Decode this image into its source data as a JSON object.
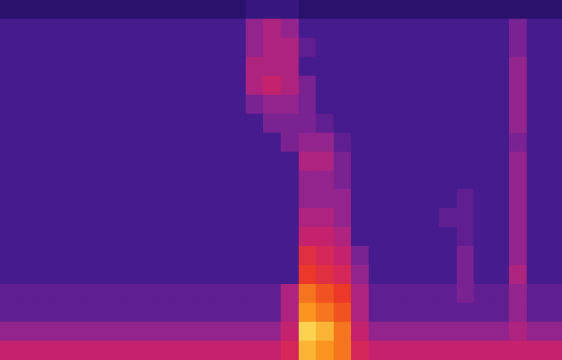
{
  "chart_data": {
    "type": "heatmap",
    "tick_labels": false,
    "color_range": [
      0,
      10
    ],
    "cells": [
      [
        2,
        2,
        2,
        2,
        2,
        2,
        2,
        2,
        2,
        2,
        2,
        2,
        2,
        2,
        2.5,
        2.5,
        2.5,
        2,
        2,
        2,
        2,
        2,
        2,
        2,
        2,
        2,
        2,
        2,
        2,
        2,
        2,
        2
      ],
      [
        3,
        3,
        3,
        3,
        3,
        3,
        3,
        3,
        3,
        3,
        3,
        3,
        3,
        3,
        4.5,
        5,
        4.5,
        3,
        3,
        3,
        3,
        3,
        3,
        3,
        3,
        3,
        3,
        3,
        3,
        4,
        3,
        3
      ],
      [
        3,
        3,
        3,
        3,
        3,
        3,
        3,
        3,
        3,
        3,
        3,
        3,
        3,
        3,
        4.5,
        5,
        5,
        3.5,
        3,
        3,
        3,
        3,
        3,
        3,
        3,
        3,
        3,
        3,
        3,
        4,
        3,
        3
      ],
      [
        3,
        3,
        3,
        3,
        3,
        3,
        3,
        3,
        3,
        3,
        3,
        3,
        3,
        3,
        5,
        5,
        5,
        3,
        3,
        3,
        3,
        3,
        3,
        3,
        3,
        3,
        3,
        3,
        3,
        4.5,
        3,
        3
      ],
      [
        3,
        3,
        3,
        3,
        3,
        3,
        3,
        3,
        3,
        3,
        3,
        3,
        3,
        3,
        5,
        5.5,
        5,
        4,
        3,
        3,
        3,
        3,
        3,
        3,
        3,
        3,
        3,
        3,
        3,
        4.5,
        3,
        3
      ],
      [
        3,
        3,
        3,
        3,
        3,
        3,
        3,
        3,
        3,
        3,
        3,
        3,
        3,
        3,
        4,
        4.5,
        4.5,
        4,
        3,
        3,
        3,
        3,
        3,
        3,
        3,
        3,
        3,
        3,
        3,
        4.5,
        3,
        3
      ],
      [
        3,
        3,
        3,
        3,
        3,
        3,
        3,
        3,
        3,
        3,
        3,
        3,
        3,
        3,
        3,
        4,
        4,
        4,
        3.5,
        3,
        3,
        3,
        3,
        3,
        3,
        3,
        3,
        3,
        3,
        4.5,
        3,
        3
      ],
      [
        3,
        3,
        3,
        3,
        3,
        3,
        3,
        3,
        3,
        3,
        3,
        3,
        3,
        3,
        3,
        3,
        4,
        4.5,
        4.5,
        3.5,
        3,
        3,
        3,
        3,
        3,
        3,
        3,
        3,
        3,
        4,
        3,
        3
      ],
      [
        3,
        3,
        3,
        3,
        3,
        3,
        3,
        3,
        3,
        3,
        3,
        3,
        3,
        3,
        3,
        3,
        3,
        5,
        5,
        4,
        3,
        3,
        3,
        3,
        3,
        3,
        3,
        3,
        3,
        4.5,
        3,
        3
      ],
      [
        3,
        3,
        3,
        3,
        3,
        3,
        3,
        3,
        3,
        3,
        3,
        3,
        3,
        3,
        3,
        3,
        3,
        4.5,
        4.5,
        4,
        3,
        3,
        3,
        3,
        3,
        3,
        3,
        3,
        3,
        4.5,
        3,
        3
      ],
      [
        3,
        3,
        3,
        3,
        3,
        3,
        3,
        3,
        3,
        3,
        3,
        3,
        3,
        3,
        3,
        3,
        3,
        4.5,
        4.5,
        4.5,
        3,
        3,
        3,
        3,
        3,
        3,
        3.5,
        3,
        3,
        4.5,
        3,
        3
      ],
      [
        3,
        3,
        3,
        3,
        3,
        3,
        3,
        3,
        3,
        3,
        3,
        3,
        3,
        3,
        3,
        3,
        3,
        5,
        5,
        4.5,
        3,
        3,
        3,
        3,
        3,
        3.5,
        3.5,
        3,
        3,
        4.5,
        3,
        3
      ],
      [
        3,
        3,
        3,
        3,
        3,
        3,
        3,
        3,
        3,
        3,
        3,
        3,
        3,
        3,
        3,
        3,
        3,
        5.5,
        5.5,
        5,
        3,
        3,
        3,
        3,
        3,
        3,
        3.5,
        3,
        3,
        4.5,
        3,
        3
      ],
      [
        3,
        3,
        3,
        3,
        3,
        3,
        3,
        3,
        3,
        3,
        3,
        3,
        3,
        3,
        3,
        3,
        3,
        6.5,
        6,
        5.5,
        4,
        3,
        3,
        3,
        3,
        3,
        4,
        3,
        3,
        4.5,
        3,
        3
      ],
      [
        3,
        3,
        3,
        3,
        3,
        3,
        3,
        3,
        3,
        3,
        3,
        3,
        3,
        3,
        3,
        3,
        3,
        7,
        6.5,
        6,
        4.5,
        3,
        3,
        3,
        3,
        3,
        4,
        3,
        3,
        5,
        3,
        3
      ],
      [
        3.5,
        3.5,
        3.5,
        3.5,
        3.5,
        3.5,
        3.5,
        3.5,
        3.5,
        3.5,
        3.5,
        3.5,
        3.5,
        3.5,
        3.5,
        3.5,
        5,
        8,
        7.5,
        7,
        5,
        3.5,
        3.5,
        3.5,
        3.5,
        3.5,
        4,
        3.5,
        3.5,
        4.5,
        3.5,
        3.5
      ],
      [
        3.5,
        3.5,
        3.5,
        3.5,
        3.5,
        3.5,
        3.5,
        3.5,
        3.5,
        3.5,
        3.5,
        3.5,
        3.5,
        3.5,
        3.5,
        3.5,
        5,
        8.5,
        8,
        7.5,
        5,
        3.5,
        3.5,
        3.5,
        3.5,
        3.5,
        3.5,
        3.5,
        3.5,
        4.5,
        3.5,
        3.5
      ],
      [
        4.5,
        4.5,
        4.5,
        4.5,
        4.5,
        4.5,
        4.5,
        4.5,
        4.5,
        4.5,
        4.5,
        4.5,
        4.5,
        4.5,
        4.5,
        4.5,
        5.5,
        9.5,
        9,
        8,
        5.5,
        4.5,
        4.5,
        4.5,
        4.5,
        4.5,
        4.5,
        4.5,
        4.5,
        5,
        4.5,
        4.5
      ],
      [
        5.5,
        5.5,
        5.5,
        5.5,
        5.5,
        5.5,
        5.5,
        5.5,
        5.5,
        5.5,
        5.5,
        5.5,
        5.5,
        5.5,
        5.5,
        5.5,
        6,
        9,
        8.5,
        8,
        6,
        5.5,
        5.5,
        5.5,
        5.5,
        5.5,
        5.5,
        5.5,
        5.5,
        5.5,
        5.5,
        5.5
      ]
    ]
  }
}
